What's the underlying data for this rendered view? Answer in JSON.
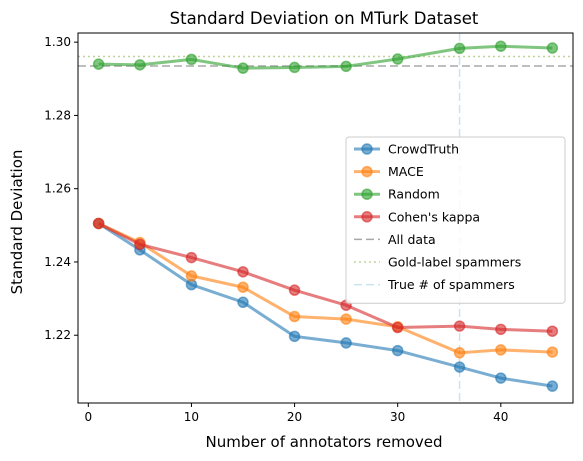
{
  "chart_data": {
    "type": "line",
    "title": "Standard Deviation on MTurk Dataset",
    "xlabel": "Number of annotators removed",
    "ylabel": "Standard Deviation",
    "xlim": [
      -1,
      47
    ],
    "ylim": [
      1.2015,
      1.3025
    ],
    "xticks": [
      0,
      10,
      20,
      30,
      40
    ],
    "yticks": [
      1.22,
      1.24,
      1.26,
      1.28,
      1.3
    ],
    "ytick_labels": [
      "1.22",
      "1.24",
      "1.26",
      "1.28",
      "1.30"
    ],
    "grid": false,
    "legend_position": "center-right",
    "x": [
      1,
      5,
      10,
      15,
      20,
      25,
      30,
      36,
      40,
      45
    ],
    "series": [
      {
        "name": "CrowdTruth",
        "color": "#1f77b4",
        "values": [
          1.2505,
          1.2433,
          1.2338,
          1.229,
          1.2197,
          1.2179,
          1.2158,
          1.2113,
          1.2083,
          1.2061
        ]
      },
      {
        "name": "MACE",
        "color": "#ff7f0e",
        "values": [
          1.2505,
          1.2453,
          1.2362,
          1.2331,
          1.2251,
          1.2244,
          1.2223,
          1.2152,
          1.216,
          1.2154
        ]
      },
      {
        "name": "Random",
        "color": "#2ca02c",
        "values": [
          1.294,
          1.2938,
          1.2953,
          1.2929,
          1.2931,
          1.2934,
          1.2954,
          1.2983,
          1.2989,
          1.2984
        ]
      },
      {
        "name": "Cohen's kappa",
        "color": "#d62728",
        "values": [
          1.2505,
          1.2448,
          1.2412,
          1.2373,
          1.2323,
          1.2282,
          1.2221,
          1.2225,
          1.2216,
          1.2211
        ]
      }
    ],
    "reference_lines": [
      {
        "name": "All data",
        "orientation": "horizontal",
        "value": 1.2935,
        "color": "#a8a8a8",
        "style": "dashed"
      },
      {
        "name": "Gold-label spammers",
        "orientation": "horizontal",
        "value": 1.2961,
        "color": "#bfd49a",
        "style": "dotted"
      },
      {
        "name": "True # of spammers",
        "orientation": "vertical",
        "value": 36,
        "color": "#c9e3ef",
        "style": "dashed"
      }
    ]
  }
}
